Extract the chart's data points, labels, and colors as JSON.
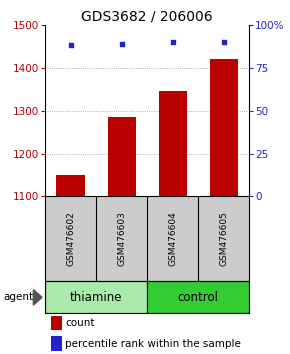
{
  "title": "GDS3682 / 206006",
  "samples": [
    "GSM476602",
    "GSM476603",
    "GSM476604",
    "GSM476605"
  ],
  "counts": [
    1150,
    1285,
    1345,
    1420
  ],
  "percentiles": [
    88,
    89,
    90,
    90
  ],
  "ylim_left": [
    1100,
    1500
  ],
  "ylim_right": [
    0,
    100
  ],
  "yticks_left": [
    1100,
    1200,
    1300,
    1400,
    1500
  ],
  "yticks_right": [
    0,
    25,
    50,
    75,
    100
  ],
  "yticklabels_right": [
    "0",
    "25",
    "50",
    "75",
    "100%"
  ],
  "bar_color": "#bb0000",
  "dot_color": "#2222cc",
  "groups": [
    {
      "label": "thiamine",
      "samples": [
        0,
        1
      ],
      "color": "#aaeaaa"
    },
    {
      "label": "control",
      "samples": [
        2,
        3
      ],
      "color": "#33cc33"
    }
  ],
  "agent_label": "agent",
  "legend_count_label": "count",
  "legend_pct_label": "percentile rank within the sample",
  "grid_color": "#999999",
  "sample_box_color": "#cccccc",
  "title_fontsize": 10,
  "tick_fontsize": 7.5,
  "group_fontsize": 8.5,
  "sample_fontsize": 6.5
}
